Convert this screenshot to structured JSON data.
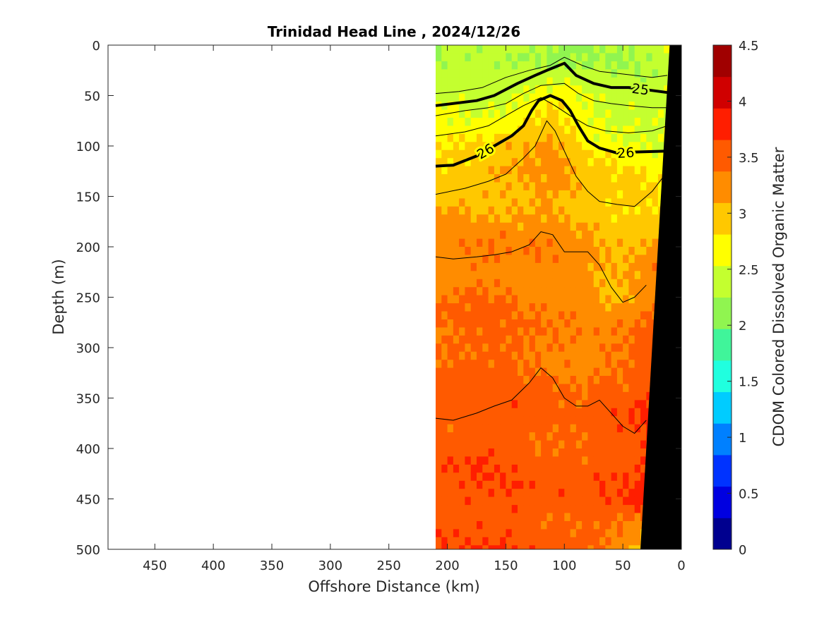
{
  "chart_data": {
    "type": "heatmap",
    "title": "Trinidad Head Line , 2024/12/26",
    "xlabel": "Offshore Distance (km)",
    "ylabel": "Depth (m)",
    "colorbar_label": "CDOM Colored Dissolved Organic Matter",
    "xlim": [
      490,
      0
    ],
    "ylim": [
      0,
      500
    ],
    "x_ticks": [
      450,
      400,
      350,
      300,
      250,
      200,
      150,
      100,
      50,
      0
    ],
    "y_ticks": [
      0,
      50,
      100,
      150,
      200,
      250,
      300,
      350,
      400,
      450,
      500
    ],
    "clim": [
      0,
      4.5
    ],
    "colorbar_ticks": [
      "0",
      "0.5",
      "1",
      "1.5",
      "2",
      "2.5",
      "3",
      "3.5",
      "4",
      "4.5"
    ],
    "color_levels": [
      "#00008f",
      "#0000e0",
      "#0033ff",
      "#0080ff",
      "#00ccff",
      "#20ffdf",
      "#40f59a",
      "#90f550",
      "#c4ff2f",
      "#ffff00",
      "#ffc800",
      "#ff8c00",
      "#ff5a00",
      "#ff1e00",
      "#d00000",
      "#a00000"
    ],
    "data_extent_km": [
      0,
      210
    ],
    "colormap": "jet",
    "grid": false,
    "profile_depths_m": [
      0,
      20,
      40,
      60,
      80,
      100,
      125,
      150,
      175,
      200,
      250,
      300,
      350,
      400,
      450,
      500
    ],
    "profile_distances_km": [
      210,
      190,
      170,
      150,
      130,
      115,
      100,
      85,
      70,
      50,
      35,
      20,
      10
    ],
    "cdom_grid": [
      [
        2.3,
        2.4,
        2.4,
        2.35,
        2.3,
        2.3,
        2.25,
        2.3,
        2.3,
        2.3,
        2.35,
        2.45,
        2.5
      ],
      [
        2.25,
        2.25,
        2.3,
        2.3,
        2.3,
        2.25,
        2.25,
        2.25,
        2.3,
        2.25,
        2.3,
        2.4,
        2.5
      ],
      [
        2.35,
        2.4,
        2.4,
        2.3,
        2.4,
        2.5,
        2.5,
        2.45,
        2.35,
        2.3,
        2.3,
        2.35,
        2.45
      ],
      [
        2.6,
        2.55,
        2.5,
        2.5,
        2.7,
        2.8,
        2.7,
        2.6,
        2.45,
        2.4,
        2.4,
        2.4,
        2.45
      ],
      [
        2.7,
        2.7,
        2.65,
        2.7,
        2.9,
        3.05,
        2.95,
        2.7,
        2.6,
        2.55,
        2.5,
        2.5,
        2.5
      ],
      [
        2.8,
        2.75,
        2.8,
        2.95,
        3.05,
        3.15,
        3.05,
        2.8,
        2.7,
        2.6,
        2.6,
        2.55,
        2.55
      ],
      [
        2.85,
        2.9,
        3.0,
        3.05,
        3.1,
        3.15,
        3.1,
        2.95,
        2.85,
        2.8,
        2.75,
        2.7,
        2.65
      ],
      [
        3.0,
        3.0,
        3.05,
        3.1,
        3.1,
        3.15,
        3.1,
        3.05,
        2.95,
        2.9,
        2.85,
        2.8,
        2.8
      ],
      [
        3.15,
        3.2,
        3.15,
        3.1,
        3.15,
        3.2,
        3.15,
        3.05,
        3.0,
        2.95,
        2.95,
        3.0,
        3.1
      ],
      [
        3.25,
        3.3,
        3.35,
        3.3,
        3.3,
        3.3,
        3.25,
        3.15,
        3.05,
        3.0,
        3.05,
        3.15,
        3.3
      ],
      [
        3.3,
        3.35,
        3.4,
        3.35,
        3.3,
        3.25,
        3.3,
        3.25,
        3.15,
        3.1,
        3.25,
        3.4,
        3.55
      ],
      [
        3.4,
        3.45,
        3.5,
        3.45,
        3.4,
        3.35,
        3.3,
        3.3,
        3.3,
        3.35,
        3.45,
        3.55,
        3.65
      ],
      [
        3.45,
        3.5,
        3.5,
        3.55,
        3.5,
        3.45,
        3.4,
        3.35,
        3.5,
        3.5,
        3.6,
        3.7,
        3.75
      ],
      [
        3.5,
        3.55,
        3.6,
        3.55,
        3.5,
        3.45,
        3.5,
        3.45,
        3.55,
        3.55,
        3.65,
        3.8,
        3.85
      ],
      [
        3.55,
        3.6,
        3.6,
        3.65,
        3.55,
        3.5,
        3.55,
        3.5,
        3.55,
        3.6,
        3.7,
        3.85,
        3.9
      ],
      [
        3.6,
        3.55,
        3.6,
        3.6,
        3.55,
        3.5,
        3.5,
        3.45,
        3.4,
        3.3,
        3.0,
        2.5,
        2.5
      ]
    ],
    "density_contours": [
      {
        "label": "25",
        "bold": true,
        "points": [
          [
            210,
            60
          ],
          [
            175,
            55
          ],
          [
            160,
            50
          ],
          [
            140,
            38
          ],
          [
            125,
            30
          ],
          [
            115,
            25
          ],
          [
            100,
            18
          ],
          [
            90,
            30
          ],
          [
            75,
            38
          ],
          [
            60,
            42
          ],
          [
            45,
            42
          ],
          [
            25,
            45
          ],
          [
            12,
            47
          ]
        ]
      },
      {
        "label": "26",
        "bold": true,
        "points": [
          [
            210,
            120
          ],
          [
            195,
            119
          ],
          [
            175,
            110
          ],
          [
            160,
            100
          ],
          [
            145,
            90
          ],
          [
            135,
            80
          ],
          [
            128,
            65
          ],
          [
            122,
            55
          ],
          [
            112,
            50
          ],
          [
            102,
            55
          ],
          [
            95,
            65
          ],
          [
            88,
            80
          ],
          [
            80,
            95
          ],
          [
            70,
            102
          ],
          [
            55,
            107
          ],
          [
            40,
            106
          ],
          [
            12,
            105
          ]
        ]
      },
      {
        "label": "",
        "bold": false,
        "points": [
          [
            210,
            48
          ],
          [
            190,
            46
          ],
          [
            170,
            42
          ],
          [
            150,
            32
          ],
          [
            130,
            25
          ],
          [
            112,
            20
          ],
          [
            100,
            12
          ],
          [
            85,
            20
          ],
          [
            70,
            26
          ],
          [
            55,
            28
          ],
          [
            40,
            30
          ],
          [
            25,
            32
          ],
          [
            12,
            30
          ]
        ]
      },
      {
        "label": "",
        "bold": false,
        "points": [
          [
            210,
            70
          ],
          [
            185,
            65
          ],
          [
            165,
            62
          ],
          [
            150,
            58
          ],
          [
            135,
            48
          ],
          [
            120,
            40
          ],
          [
            100,
            38
          ],
          [
            88,
            48
          ],
          [
            75,
            55
          ],
          [
            60,
            58
          ],
          [
            45,
            60
          ],
          [
            25,
            62
          ],
          [
            12,
            62
          ]
        ]
      },
      {
        "label": "",
        "bold": false,
        "points": [
          [
            210,
            90
          ],
          [
            185,
            86
          ],
          [
            165,
            80
          ],
          [
            150,
            70
          ],
          [
            135,
            60
          ],
          [
            120,
            52
          ],
          [
            108,
            60
          ],
          [
            95,
            70
          ],
          [
            80,
            80
          ],
          [
            65,
            85
          ],
          [
            45,
            87
          ],
          [
            25,
            85
          ],
          [
            12,
            80
          ]
        ]
      },
      {
        "label": "",
        "bold": false,
        "points": [
          [
            210,
            148
          ],
          [
            185,
            142
          ],
          [
            165,
            135
          ],
          [
            150,
            128
          ],
          [
            135,
            112
          ],
          [
            125,
            100
          ],
          [
            115,
            75
          ],
          [
            108,
            85
          ],
          [
            98,
            110
          ],
          [
            90,
            130
          ],
          [
            80,
            145
          ],
          [
            70,
            155
          ],
          [
            55,
            158
          ],
          [
            40,
            160
          ],
          [
            25,
            145
          ],
          [
            15,
            130
          ]
        ]
      },
      {
        "label": "",
        "bold": false,
        "points": [
          [
            210,
            210
          ],
          [
            195,
            212
          ],
          [
            175,
            210
          ],
          [
            160,
            208
          ],
          [
            145,
            205
          ],
          [
            130,
            198
          ],
          [
            120,
            185
          ],
          [
            110,
            188
          ],
          [
            100,
            205
          ],
          [
            80,
            205
          ],
          [
            70,
            218
          ],
          [
            60,
            240
          ],
          [
            50,
            255
          ],
          [
            40,
            250
          ],
          [
            30,
            238
          ]
        ]
      },
      {
        "label": "",
        "bold": false,
        "points": [
          [
            210,
            370
          ],
          [
            195,
            372
          ],
          [
            175,
            365
          ],
          [
            160,
            358
          ],
          [
            145,
            352
          ],
          [
            130,
            335
          ],
          [
            120,
            320
          ],
          [
            110,
            330
          ],
          [
            100,
            350
          ],
          [
            90,
            358
          ],
          [
            80,
            358
          ],
          [
            70,
            352
          ],
          [
            60,
            365
          ],
          [
            50,
            378
          ],
          [
            40,
            385
          ],
          [
            30,
            372
          ]
        ]
      }
    ],
    "bottom_profile": [
      [
        10,
        0
      ],
      [
        35,
        500
      ]
    ]
  }
}
